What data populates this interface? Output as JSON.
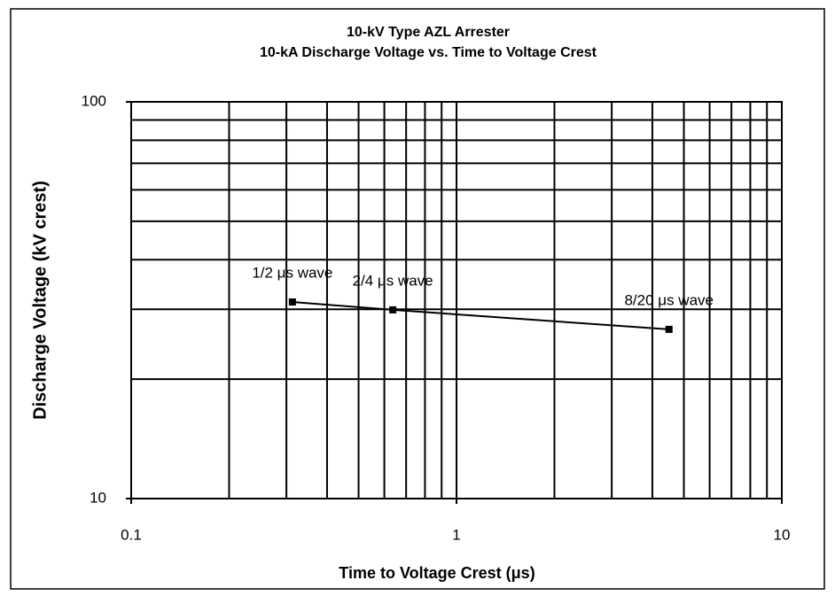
{
  "chart_data": {
    "type": "line",
    "title": "10-kV Type AZL Arrester",
    "subtitle": "10-kA Discharge Voltage vs. Time to Voltage Crest",
    "x_label": "Time to Voltage Crest (μs)",
    "y_label": "Discharge Voltage (kV crest)",
    "x": [
      0.313,
      0.637,
      4.5
    ],
    "series": [
      {
        "name": "10-kA discharge voltage",
        "color": "#000000",
        "values": [
          31.3,
          29.9,
          26.7
        ]
      }
    ],
    "point_labels": [
      "1/2 μs wave",
      "2/4 μs wave",
      "8/20 μs wave"
    ],
    "xlim": [
      0.1,
      10
    ],
    "ylim": [
      10,
      100
    ],
    "xticks": [
      0.1,
      1,
      10
    ],
    "yticks": [
      10,
      100
    ],
    "xgrid": [
      0.1,
      0.2,
      0.3,
      0.4,
      0.5,
      0.6,
      0.7,
      0.8,
      0.9,
      1,
      2,
      3,
      4,
      5,
      6,
      7,
      8,
      9,
      10
    ],
    "ygrid": [
      10,
      20,
      30,
      40,
      50,
      60,
      70,
      80,
      90,
      100
    ],
    "xscale": "log",
    "yscale": "log",
    "grid": true
  }
}
